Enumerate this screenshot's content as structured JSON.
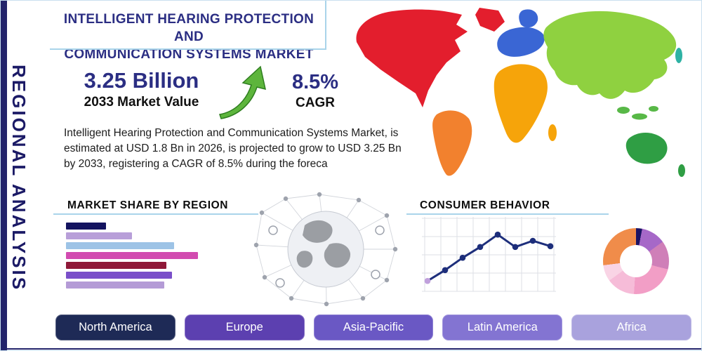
{
  "page": {
    "vertical_label": "REGIONAL ANALYSIS",
    "title_line1": "INTELLIGENT HEARING PROTECTION AND",
    "title_line2": "COMMUNICATION SYSTEMS MARKET",
    "description": "Intelligent Hearing Protection and Communication Systems Market, is estimated at USD 1.8 Bn in 2026, is projected to grow to USD 3.25 Bn by 2033, registering a CAGR of 8.5% during the foreca"
  },
  "stats": {
    "market_value": {
      "value": "3.25 Billion",
      "label": "2033 Market Value"
    },
    "cagr": {
      "value": "8.5%",
      "label": "CAGR"
    }
  },
  "sections": {
    "market_share": "MARKET SHARE BY REGION",
    "consumer_behavior": "CONSUMER BEHAVIOR"
  },
  "buttons": [
    {
      "label": "North America",
      "color": "#1e2a56"
    },
    {
      "label": "Europe",
      "color": "#5c40b0"
    },
    {
      "label": "Asia-Pacific",
      "color": "#6a58c4"
    },
    {
      "label": "Latin America",
      "color": "#8374d2"
    },
    {
      "label": "Africa",
      "color": "#a9a2dd"
    }
  ],
  "chart_data": [
    {
      "type": "bar",
      "title": "Market Share by Region",
      "orientation": "horizontal",
      "categories": [],
      "series": [
        {
          "name": "market-share",
          "values": [
            20,
            33,
            54,
            66,
            50,
            53,
            49
          ]
        }
      ],
      "colors": [
        "#14145f",
        "#b89fd9",
        "#9dc3e6",
        "#d24bb0",
        "#8f1838",
        "#7a4fc9",
        "#b49bd6"
      ],
      "xlim": [
        0,
        100
      ],
      "grid": false
    },
    {
      "type": "line",
      "title": "Consumer Behavior",
      "x": [
        1,
        2,
        3,
        4,
        5,
        6,
        7,
        8
      ],
      "values": [
        8,
        22,
        38,
        52,
        68,
        52,
        60,
        53
      ],
      "ylim": [
        0,
        80
      ],
      "grid": true,
      "line_color": "#1d2e7b",
      "first_point_color": "#c0a0dc"
    },
    {
      "type": "pie",
      "donut": true,
      "slices": [
        {
          "value": 3,
          "color": "#1b1464"
        },
        {
          "value": 12,
          "color": "#a668c8"
        },
        {
          "value": 14,
          "color": "#cf7fb8"
        },
        {
          "value": 22,
          "color": "#f29ec6"
        },
        {
          "value": 14,
          "color": "#f6bcd8"
        },
        {
          "value": 8,
          "color": "#f9d4e5"
        },
        {
          "value": 27,
          "color": "#f08c4a"
        }
      ]
    }
  ],
  "map": {
    "regions": {
      "north-america": "#e31e2d",
      "greenland": "#e31e2d",
      "south-america": "#f2812e",
      "europe": "#3a66d4",
      "scandinavia": "#3a66d4",
      "africa": "#f6a40a",
      "madagascar": "#f6a40a",
      "asia": "#8fd140",
      "southeast-asia": "#58b847",
      "australia": "#2f9e44",
      "new-zealand": "#2f9e44",
      "japan": "#2eb2a4"
    }
  },
  "theme": {
    "primary_navy": "#23246b",
    "heading_color": "#2b2e83",
    "underline_color": "#a9d4ea",
    "arrow_green": "#5db53c"
  }
}
